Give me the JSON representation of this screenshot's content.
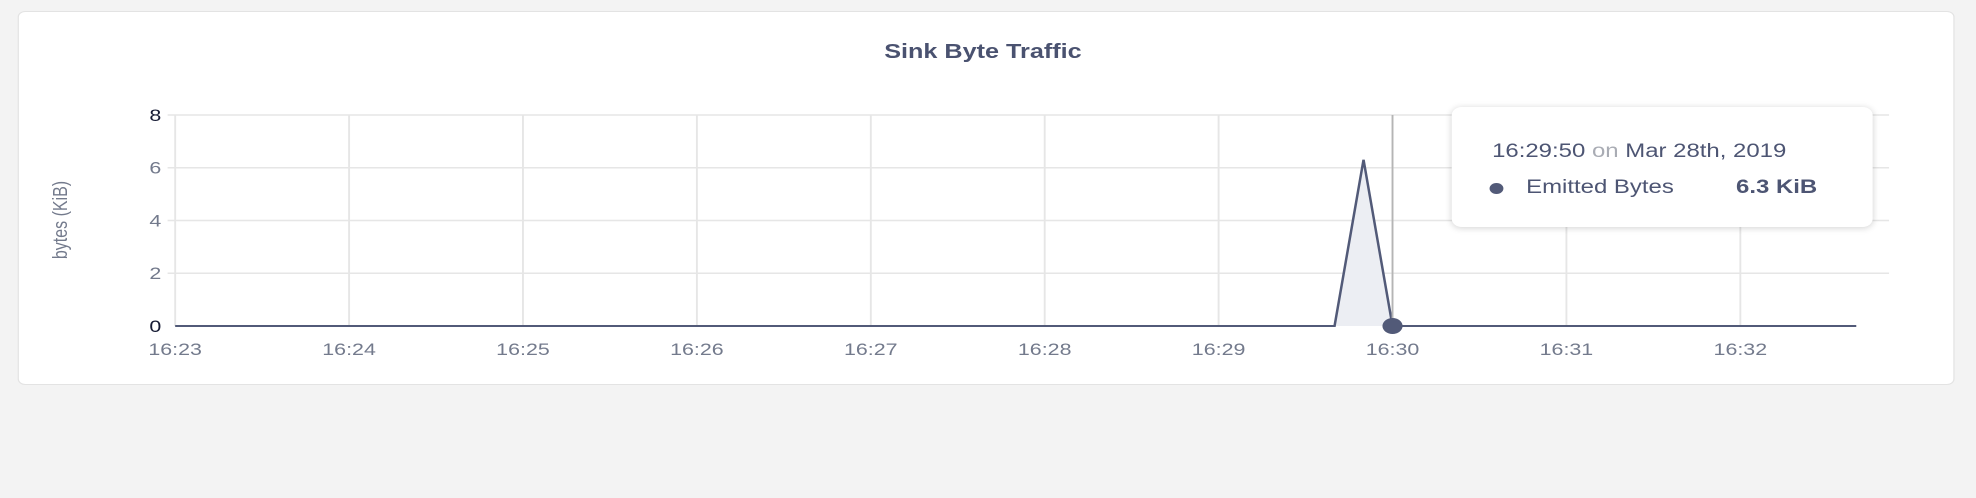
{
  "chart_data": {
    "type": "area",
    "title": "Sink Byte Traffic",
    "ylabel": "bytes (KiB)",
    "xlabel": "",
    "ylim": [
      0,
      8
    ],
    "yticks": [
      "0",
      "2",
      "4",
      "6",
      "8"
    ],
    "xticks": [
      "16:23",
      "16:24",
      "16:25",
      "16:26",
      "16:27",
      "16:28",
      "16:29",
      "16:30",
      "16:31",
      "16:32"
    ],
    "xlim": [
      "16:23:00",
      "16:32:40"
    ],
    "grid": true,
    "series": [
      {
        "name": "Emitted Bytes",
        "color": "#525a78",
        "fill": "#eceef3",
        "points": [
          {
            "x": "16:23:00",
            "y": 0
          },
          {
            "x": "16:29:40",
            "y": 0
          },
          {
            "x": "16:29:50",
            "y": 6.3
          },
          {
            "x": "16:30:00",
            "y": 0
          },
          {
            "x": "16:32:40",
            "y": 0
          }
        ]
      }
    ],
    "hover": {
      "x": "16:30:00",
      "y": 0
    },
    "tooltip": {
      "time": "16:29:50",
      "on": "on",
      "date": "Mar 28th, 2019",
      "series_name": "Emitted Bytes",
      "value": "6.3 KiB"
    }
  }
}
